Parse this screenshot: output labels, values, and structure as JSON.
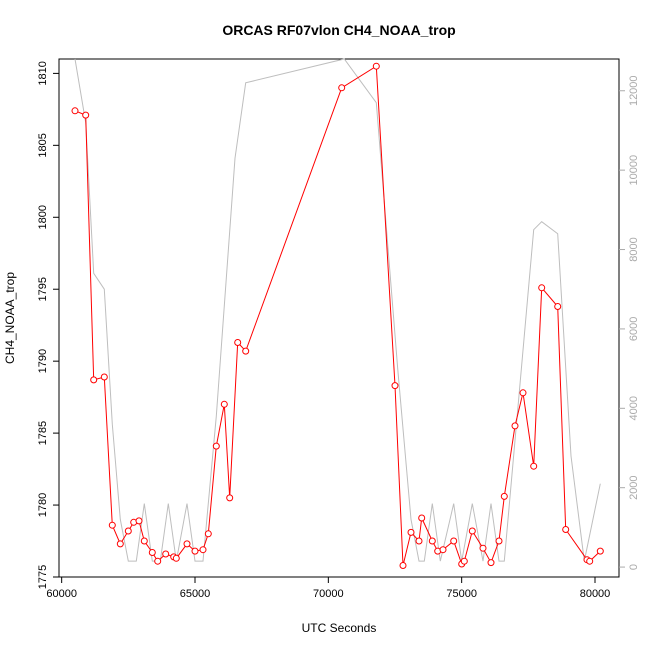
{
  "chart_data": {
    "type": "line",
    "title": "ORCAS RF07vlon CH4_NOAA_trop",
    "xlabel": "UTC Seconds",
    "ylabel": "CH4_NOAA_trop",
    "xlim": [
      59900,
      80900
    ],
    "ylim": [
      1775,
      1811
    ],
    "y2lim": [
      -250,
      12800
    ],
    "x_ticks": [
      60000,
      65000,
      70000,
      75000,
      80000
    ],
    "y_ticks": [
      1775,
      1780,
      1785,
      1790,
      1795,
      1800,
      1805,
      1810
    ],
    "y2_ticks": [
      0,
      2000,
      4000,
      6000,
      8000,
      10000,
      12000
    ],
    "grid": false,
    "series": [
      {
        "axis": "left",
        "color": "#ff0000",
        "marker": "open-circle",
        "x": [
          60500,
          60900,
          61200,
          61600,
          61900,
          62200,
          62500,
          62700,
          62900,
          63100,
          63400,
          63600,
          63900,
          64200,
          64300,
          64700,
          65000,
          65300,
          65500,
          65800,
          66100,
          66300,
          66600,
          66900,
          70500,
          71800,
          72500,
          72800,
          73100,
          73400,
          73500,
          73900,
          74100,
          74300,
          74700,
          75000,
          75100,
          75400,
          75800,
          76100,
          76400,
          76600,
          77000,
          77300,
          77700,
          78000,
          78600,
          78900,
          79700,
          79800,
          80200
        ],
        "y": [
          1807.4,
          1807.1,
          1788.7,
          1788.9,
          1778.6,
          1777.3,
          1778.2,
          1778.8,
          1778.9,
          1777.5,
          1776.7,
          1776.1,
          1776.6,
          1776.4,
          1776.3,
          1777.3,
          1776.8,
          1776.9,
          1778.0,
          1784.1,
          1787.0,
          1780.5,
          1791.3,
          1790.7,
          1809.0,
          1810.5,
          1788.3,
          1775.8,
          1778.1,
          1777.5,
          1779.1,
          1777.5,
          1776.8,
          1776.9,
          1777.5,
          1775.9,
          1776.1,
          1778.2,
          1777.0,
          1776.0,
          1777.5,
          1780.6,
          1785.5,
          1787.8,
          1782.7,
          1795.1,
          1793.8,
          1778.3,
          1776.2,
          1776.1,
          1776.8
        ]
      },
      {
        "axis": "right",
        "color": "#bebebe",
        "marker": "none",
        "x": [
          60500,
          60900,
          61200,
          61600,
          61900,
          62200,
          62500,
          62800,
          63100,
          63400,
          63700,
          64000,
          64300,
          64700,
          65000,
          65300,
          65800,
          66500,
          66900,
          70600,
          71800,
          72600,
          73100,
          73400,
          73600,
          73900,
          74200,
          74700,
          75000,
          75400,
          75800,
          76100,
          76400,
          76600,
          77700,
          78000,
          78600,
          79100,
          79600,
          80200
        ],
        "y": [
          12800,
          11200,
          7400,
          7000,
          3600,
          1200,
          150,
          150,
          1600,
          150,
          150,
          1600,
          150,
          1600,
          150,
          150,
          3800,
          10300,
          12200,
          12800,
          11700,
          5000,
          1200,
          150,
          150,
          1600,
          150,
          1600,
          150,
          1600,
          150,
          1600,
          150,
          150,
          8500,
          8700,
          8400,
          2800,
          150,
          2100
        ]
      }
    ]
  }
}
